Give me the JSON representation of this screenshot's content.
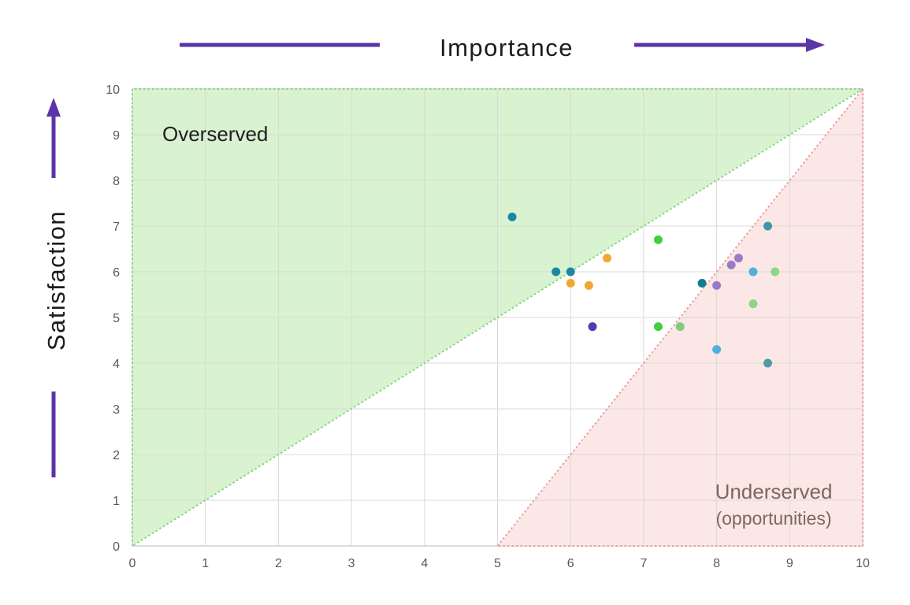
{
  "chart_data": {
    "type": "scatter",
    "title": "",
    "x_axis": {
      "label": "Importance",
      "min": 0,
      "max": 10,
      "ticks": [
        0,
        1,
        2,
        3,
        4,
        5,
        6,
        7,
        8,
        9,
        10
      ]
    },
    "y_axis": {
      "label": "Satisfaction",
      "min": 0,
      "max": 10,
      "ticks": [
        0,
        1,
        2,
        3,
        4,
        5,
        6,
        7,
        8,
        9,
        10
      ]
    },
    "grid": true,
    "zones": [
      {
        "label": "Overserved",
        "sublabel": "",
        "polygon": [
          [
            0,
            0
          ],
          [
            0,
            10
          ],
          [
            10,
            10
          ]
        ],
        "fill": "#d9f2d0",
        "border": "#82d882"
      },
      {
        "label": "Underserved",
        "sublabel": "(opportunities)",
        "polygon": [
          [
            5,
            0
          ],
          [
            10,
            10
          ],
          [
            10,
            0
          ]
        ],
        "fill": "#fbe7e5",
        "border": "#ee9e9e"
      }
    ],
    "points": [
      {
        "x": 5.2,
        "y": 7.2,
        "color": "#1e87a0"
      },
      {
        "x": 5.8,
        "y": 6.0,
        "color": "#1e87a0"
      },
      {
        "x": 6.0,
        "y": 6.0,
        "color": "#1e87a0"
      },
      {
        "x": 6.0,
        "y": 5.75,
        "color": "#f0a830"
      },
      {
        "x": 6.25,
        "y": 5.7,
        "color": "#f0a830"
      },
      {
        "x": 6.5,
        "y": 6.3,
        "color": "#f0a830"
      },
      {
        "x": 6.3,
        "y": 4.8,
        "color": "#4e3bb8"
      },
      {
        "x": 7.2,
        "y": 6.7,
        "color": "#3fcf3f"
      },
      {
        "x": 7.2,
        "y": 4.8,
        "color": "#3fcf3f"
      },
      {
        "x": 7.5,
        "y": 4.8,
        "color": "#7fcc7a"
      },
      {
        "x": 7.8,
        "y": 5.75,
        "color": "#0e7d8c"
      },
      {
        "x": 8.0,
        "y": 5.7,
        "color": "#9a7bc8"
      },
      {
        "x": 8.2,
        "y": 6.15,
        "color": "#9a7bc8"
      },
      {
        "x": 8.3,
        "y": 6.3,
        "color": "#9a7bc8"
      },
      {
        "x": 8.5,
        "y": 6.0,
        "color": "#4fb0e0"
      },
      {
        "x": 8.0,
        "y": 4.3,
        "color": "#4fb0e0"
      },
      {
        "x": 8.8,
        "y": 6.0,
        "color": "#8ed584"
      },
      {
        "x": 8.5,
        "y": 5.3,
        "color": "#8ed584"
      },
      {
        "x": 8.7,
        "y": 7.0,
        "color": "#3f96a5"
      },
      {
        "x": 8.7,
        "y": 4.0,
        "color": "#4f9ba5"
      }
    ],
    "colors": {
      "arrow": "#5b35a8",
      "grid": "#d9d9d9",
      "tick": "#595959",
      "title": "#1c1c1c",
      "dark_label": "#1f1f1f",
      "muted_label": "#7a6862",
      "frame": "#cfcfcf"
    },
    "legend": null,
    "point_radius": 5.5
  }
}
